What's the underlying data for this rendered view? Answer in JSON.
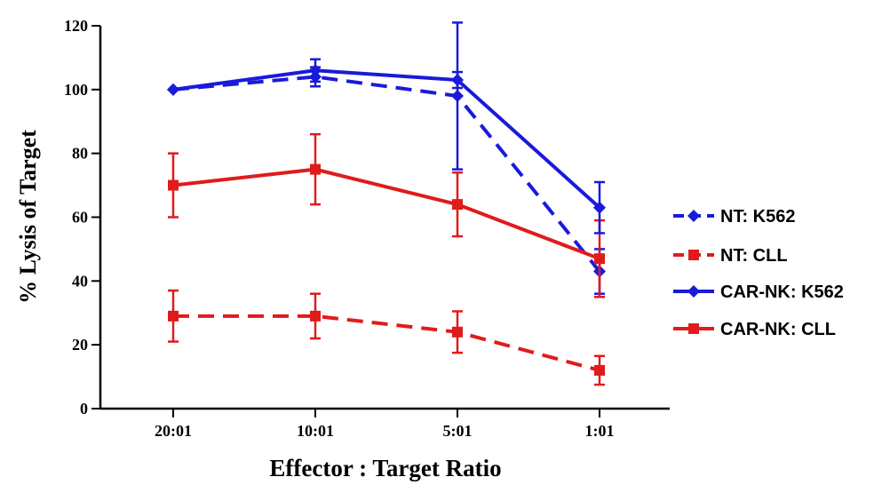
{
  "chart_data": {
    "type": "line",
    "title": "",
    "xlabel": "Effector : Target Ratio",
    "ylabel": "% Lysis of Target",
    "categories": [
      "20:01",
      "10:01",
      "5:01",
      "1:01"
    ],
    "ylim": [
      0,
      120
    ],
    "yticks": [
      "0",
      "20",
      "40",
      "60",
      "80",
      "100",
      "120"
    ],
    "grid": false,
    "legend_position": "right",
    "series": [
      {
        "name": "NT: K562",
        "color": "#1a1adb",
        "dashed": true,
        "marker": "diamond",
        "values": [
          100,
          104,
          98,
          43
        ],
        "error": [
          0,
          3,
          23,
          7
        ]
      },
      {
        "name": "NT: CLL",
        "color": "#e01b1b",
        "dashed": true,
        "marker": "square",
        "values": [
          29,
          29,
          24,
          12
        ],
        "error": [
          8,
          7,
          6.5,
          4.5
        ]
      },
      {
        "name": "CAR-NK: K562",
        "color": "#1a1adb",
        "dashed": false,
        "marker": "diamond",
        "values": [
          100,
          106,
          103,
          63
        ],
        "error": [
          0,
          3.5,
          2.5,
          8
        ]
      },
      {
        "name": "CAR-NK: CLL",
        "color": "#e01b1b",
        "dashed": false,
        "marker": "square",
        "values": [
          70,
          75,
          64,
          47
        ],
        "error": [
          10,
          11,
          10,
          12
        ]
      }
    ]
  }
}
